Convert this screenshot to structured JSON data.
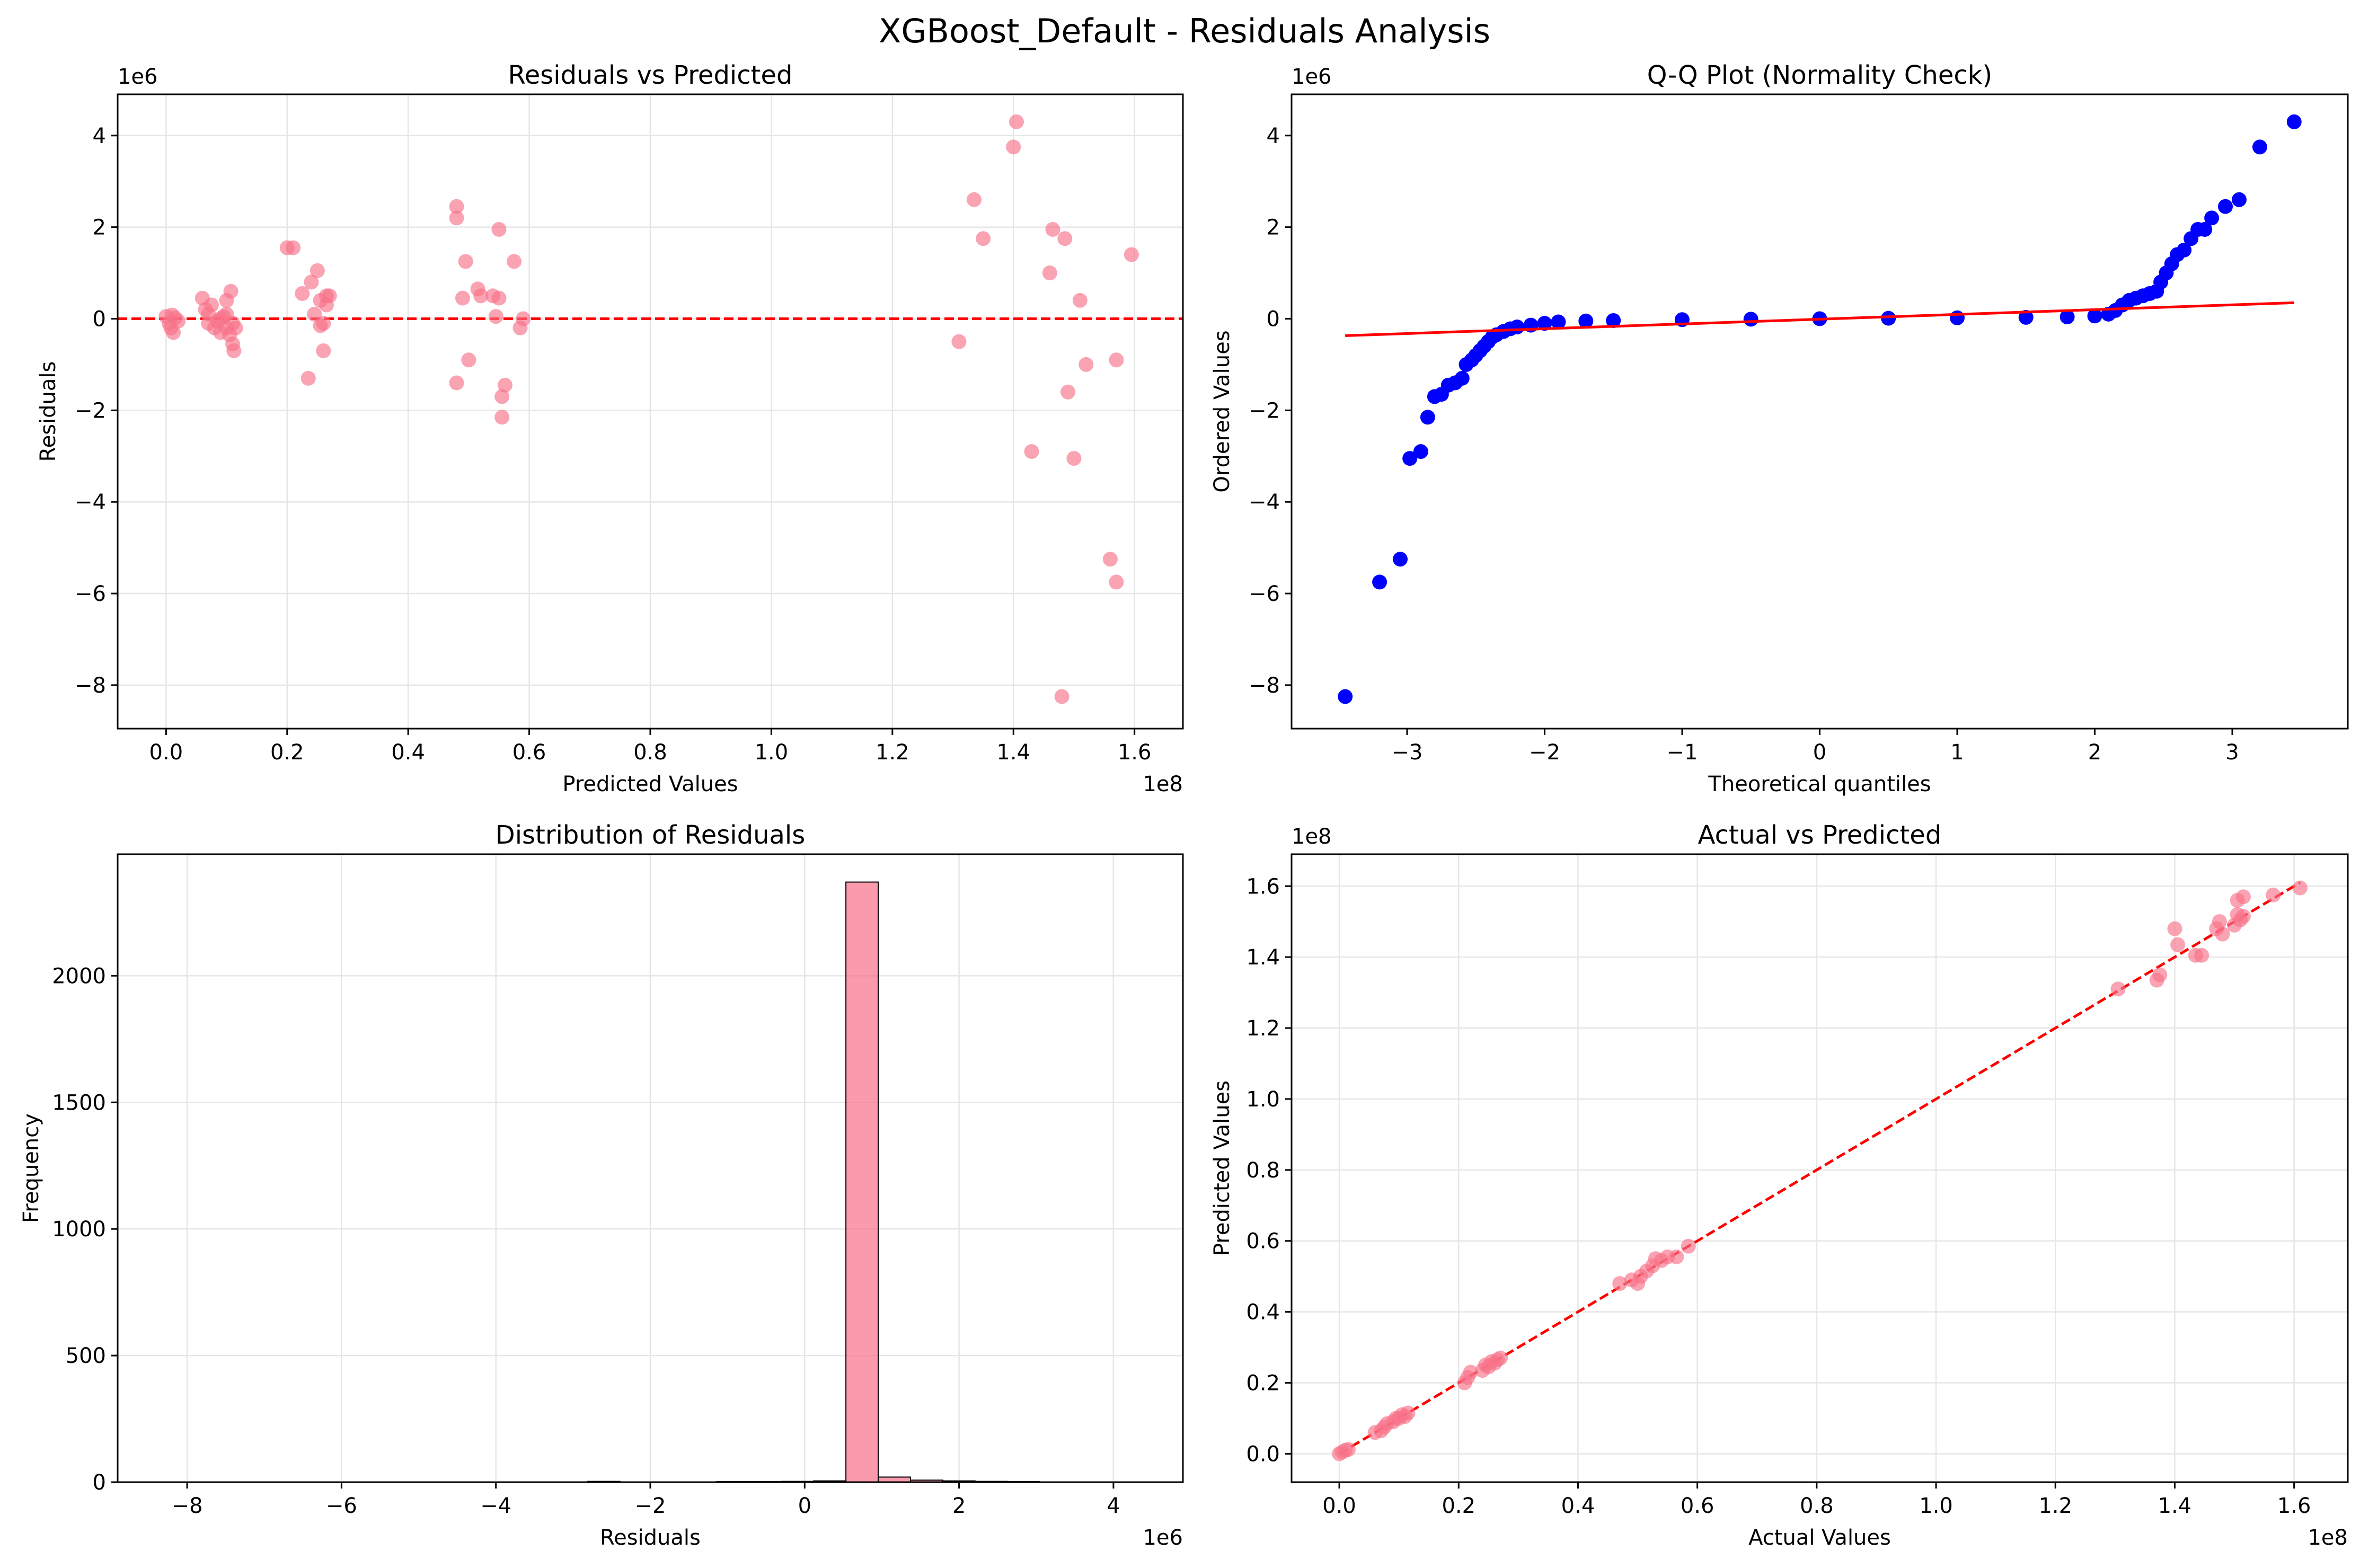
{
  "figure": {
    "suptitle": "XGBoost_Default - Residuals Analysis"
  },
  "colors": {
    "points": "#f77189",
    "refline": "#ff0000",
    "qq_points": "#0000ff",
    "qq_line": "#ff0000",
    "grid": "#e6e6e6"
  },
  "chart_data": [
    {
      "id": "residuals-vs-predicted",
      "type": "scatter",
      "title": "Residuals vs Predicted",
      "xlabel": "Predicted Values",
      "ylabel": "Residuals",
      "x_multiplier": "1e8",
      "y_multiplier": "1e6",
      "xlim": [
        -0.08,
        1.68
      ],
      "ylim": [
        -8.95,
        4.9
      ],
      "xticks": [
        0.0,
        0.2,
        0.4,
        0.6,
        0.8,
        1.0,
        1.2,
        1.4,
        1.6
      ],
      "xtick_labels": [
        "0.0",
        "0.2",
        "0.4",
        "0.6",
        "0.8",
        "1.0",
        "1.2",
        "1.4",
        "1.6"
      ],
      "yticks": [
        -8,
        -6,
        -4,
        -2,
        0,
        2,
        4
      ],
      "ytick_labels": [
        "−8",
        "−6",
        "−4",
        "−2",
        "0",
        "2",
        "4"
      ],
      "grid": true,
      "reference_line": {
        "y": 0,
        "style": "dashed"
      },
      "points": [
        [
          0.0,
          0.05
        ],
        [
          0.005,
          -0.1
        ],
        [
          0.01,
          0.08
        ],
        [
          0.008,
          -0.2
        ],
        [
          0.012,
          -0.3
        ],
        [
          0.015,
          0.02
        ],
        [
          0.02,
          -0.05
        ],
        [
          0.06,
          0.45
        ],
        [
          0.065,
          0.2
        ],
        [
          0.07,
          0.1
        ],
        [
          0.07,
          -0.1
        ],
        [
          0.075,
          0.3
        ],
        [
          0.08,
          -0.2
        ],
        [
          0.085,
          -0.05
        ],
        [
          0.09,
          0.0
        ],
        [
          0.09,
          -0.3
        ],
        [
          0.095,
          0.05
        ],
        [
          0.1,
          0.1
        ],
        [
          0.1,
          -0.2
        ],
        [
          0.1,
          0.4
        ],
        [
          0.105,
          -0.35
        ],
        [
          0.107,
          0.6
        ],
        [
          0.11,
          -0.1
        ],
        [
          0.11,
          -0.55
        ],
        [
          0.112,
          -0.7
        ],
        [
          0.115,
          -0.2
        ],
        [
          0.2,
          1.55
        ],
        [
          0.21,
          1.55
        ],
        [
          0.225,
          0.55
        ],
        [
          0.235,
          -1.3
        ],
        [
          0.24,
          0.8
        ],
        [
          0.245,
          0.1
        ],
        [
          0.25,
          1.05
        ],
        [
          0.255,
          0.4
        ],
        [
          0.255,
          -0.15
        ],
        [
          0.26,
          -0.1
        ],
        [
          0.26,
          -0.7
        ],
        [
          0.265,
          0.3
        ],
        [
          0.265,
          0.5
        ],
        [
          0.27,
          0.5
        ],
        [
          0.48,
          2.45
        ],
        [
          0.48,
          2.2
        ],
        [
          0.48,
          -1.4
        ],
        [
          0.49,
          0.45
        ],
        [
          0.495,
          1.25
        ],
        [
          0.5,
          -0.9
        ],
        [
          0.515,
          0.65
        ],
        [
          0.52,
          0.5
        ],
        [
          0.54,
          0.5
        ],
        [
          0.545,
          0.05
        ],
        [
          0.55,
          0.45
        ],
        [
          0.55,
          1.95
        ],
        [
          0.555,
          -1.7
        ],
        [
          0.555,
          -2.15
        ],
        [
          0.56,
          -1.45
        ],
        [
          0.575,
          1.25
        ],
        [
          0.585,
          -0.2
        ],
        [
          0.59,
          0.0
        ],
        [
          1.31,
          -0.5
        ],
        [
          1.335,
          2.6
        ],
        [
          1.35,
          1.75
        ],
        [
          1.4,
          3.75
        ],
        [
          1.405,
          4.3
        ],
        [
          1.43,
          -2.9
        ],
        [
          1.46,
          1.0
        ],
        [
          1.465,
          1.95
        ],
        [
          1.48,
          -8.25
        ],
        [
          1.485,
          1.75
        ],
        [
          1.49,
          -1.6
        ],
        [
          1.5,
          -3.05
        ],
        [
          1.51,
          0.4
        ],
        [
          1.52,
          -1.0
        ],
        [
          1.56,
          -5.25
        ],
        [
          1.57,
          -5.75
        ],
        [
          1.57,
          -0.9
        ],
        [
          1.595,
          1.4
        ]
      ]
    },
    {
      "id": "qq-plot",
      "type": "scatter",
      "title": "Q-Q Plot (Normality Check)",
      "xlabel": "Theoretical quantiles",
      "ylabel": "Ordered Values",
      "y_multiplier": "1e6",
      "xlim": [
        -3.84,
        3.84
      ],
      "ylim": [
        -8.95,
        4.9
      ],
      "xticks": [
        -3,
        -2,
        -1,
        0,
        1,
        2,
        3
      ],
      "xtick_labels": [
        "−3",
        "−2",
        "−1",
        "0",
        "1",
        "2",
        "3"
      ],
      "yticks": [
        -8,
        -6,
        -4,
        -2,
        0,
        2,
        4
      ],
      "ytick_labels": [
        "−8",
        "−6",
        "−4",
        "−2",
        "0",
        "2",
        "4"
      ],
      "grid": false,
      "fit_line": {
        "x": [
          -3.45,
          3.45
        ],
        "y": [
          -0.37,
          0.35
        ]
      },
      "points": [
        [
          -3.45,
          -8.25
        ],
        [
          -3.2,
          -5.75
        ],
        [
          -3.05,
          -5.25
        ],
        [
          -2.98,
          -3.05
        ],
        [
          -2.9,
          -2.9
        ],
        [
          -2.85,
          -2.15
        ],
        [
          -2.8,
          -1.7
        ],
        [
          -2.75,
          -1.65
        ],
        [
          -2.7,
          -1.45
        ],
        [
          -2.65,
          -1.4
        ],
        [
          -2.6,
          -1.3
        ],
        [
          -2.57,
          -1.0
        ],
        [
          -2.53,
          -0.9
        ],
        [
          -2.5,
          -0.8
        ],
        [
          -2.47,
          -0.7
        ],
        [
          -2.44,
          -0.6
        ],
        [
          -2.41,
          -0.5
        ],
        [
          -2.38,
          -0.4
        ],
        [
          -2.35,
          -0.35
        ],
        [
          -2.3,
          -0.28
        ],
        [
          -2.25,
          -0.22
        ],
        [
          -2.2,
          -0.18
        ],
        [
          -2.1,
          -0.14
        ],
        [
          -2.0,
          -0.1
        ],
        [
          -1.9,
          -0.07
        ],
        [
          -1.7,
          -0.05
        ],
        [
          -1.5,
          -0.04
        ],
        [
          -1.0,
          -0.02
        ],
        [
          -0.5,
          -0.01
        ],
        [
          0.0,
          0.0
        ],
        [
          0.5,
          0.01
        ],
        [
          1.0,
          0.02
        ],
        [
          1.5,
          0.03
        ],
        [
          1.8,
          0.04
        ],
        [
          2.0,
          0.06
        ],
        [
          2.1,
          0.1
        ],
        [
          2.15,
          0.18
        ],
        [
          2.2,
          0.3
        ],
        [
          2.25,
          0.4
        ],
        [
          2.3,
          0.45
        ],
        [
          2.35,
          0.5
        ],
        [
          2.4,
          0.55
        ],
        [
          2.45,
          0.6
        ],
        [
          2.48,
          0.8
        ],
        [
          2.52,
          1.0
        ],
        [
          2.56,
          1.2
        ],
        [
          2.6,
          1.4
        ],
        [
          2.65,
          1.5
        ],
        [
          2.7,
          1.75
        ],
        [
          2.75,
          1.95
        ],
        [
          2.8,
          1.95
        ],
        [
          2.85,
          2.2
        ],
        [
          2.95,
          2.45
        ],
        [
          3.05,
          2.6
        ],
        [
          3.2,
          3.75
        ],
        [
          3.45,
          4.3
        ]
      ]
    },
    {
      "id": "residuals-distribution",
      "type": "bar",
      "title": "Distribution of Residuals",
      "xlabel": "Residuals",
      "ylabel": "Frequency",
      "x_multiplier": "1e6",
      "xlim": [
        -8.9,
        4.9
      ],
      "ylim": [
        0,
        2480
      ],
      "xticks": [
        -8,
        -6,
        -4,
        -2,
        0,
        2,
        4
      ],
      "xtick_labels": [
        "−8",
        "−6",
        "−4",
        "−2",
        "0",
        "2",
        "4"
      ],
      "yticks": [
        0,
        500,
        1000,
        1500,
        2000
      ],
      "ytick_labels": [
        "0",
        "500",
        "1000",
        "1500",
        "2000"
      ],
      "grid": true,
      "bin_edges_start": -8.25,
      "bin_width": 0.4183,
      "counts": [
        1,
        0,
        0,
        0,
        0,
        0,
        1,
        1,
        0,
        0,
        0,
        0,
        1,
        3,
        0,
        1,
        1,
        2,
        2,
        3,
        5,
        2370,
        20,
        8,
        5,
        3,
        2,
        1,
        1,
        1
      ]
    },
    {
      "id": "actual-vs-predicted",
      "type": "scatter",
      "title": "Actual vs Predicted",
      "xlabel": "Actual Values",
      "ylabel": "Predicted Values",
      "x_multiplier": "1e8",
      "y_multiplier": "1e8",
      "xlim": [
        -0.08,
        1.69
      ],
      "ylim": [
        -0.08,
        1.69
      ],
      "xticks": [
        0.0,
        0.2,
        0.4,
        0.6,
        0.8,
        1.0,
        1.2,
        1.4,
        1.6
      ],
      "xtick_labels": [
        "0.0",
        "0.2",
        "0.4",
        "0.6",
        "0.8",
        "1.0",
        "1.2",
        "1.4",
        "1.6"
      ],
      "yticks": [
        0.0,
        0.2,
        0.4,
        0.6,
        0.8,
        1.0,
        1.2,
        1.4,
        1.6
      ],
      "ytick_labels": [
        "0.0",
        "0.2",
        "0.4",
        "0.6",
        "0.8",
        "1.0",
        "1.2",
        "1.4",
        "1.6"
      ],
      "grid": true,
      "reference_line": {
        "x": [
          0,
          1.61
        ],
        "y": [
          0,
          1.61
        ],
        "style": "dashed"
      },
      "points": [
        [
          0.0,
          0.0
        ],
        [
          0.005,
          0.005
        ],
        [
          0.01,
          0.01
        ],
        [
          0.015,
          0.012
        ],
        [
          0.06,
          0.06
        ],
        [
          0.07,
          0.065
        ],
        [
          0.075,
          0.075
        ],
        [
          0.08,
          0.085
        ],
        [
          0.09,
          0.09
        ],
        [
          0.095,
          0.1
        ],
        [
          0.1,
          0.1
        ],
        [
          0.105,
          0.11
        ],
        [
          0.11,
          0.105
        ],
        [
          0.115,
          0.115
        ],
        [
          0.21,
          0.2
        ],
        [
          0.215,
          0.215
        ],
        [
          0.22,
          0.23
        ],
        [
          0.24,
          0.235
        ],
        [
          0.245,
          0.25
        ],
        [
          0.25,
          0.245
        ],
        [
          0.255,
          0.26
        ],
        [
          0.26,
          0.255
        ],
        [
          0.265,
          0.265
        ],
        [
          0.27,
          0.27
        ],
        [
          0.47,
          0.48
        ],
        [
          0.49,
          0.49
        ],
        [
          0.5,
          0.48
        ],
        [
          0.505,
          0.5
        ],
        [
          0.515,
          0.515
        ],
        [
          0.525,
          0.53
        ],
        [
          0.53,
          0.55
        ],
        [
          0.54,
          0.545
        ],
        [
          0.55,
          0.555
        ],
        [
          0.565,
          0.555
        ],
        [
          0.585,
          0.585
        ],
        [
          1.305,
          1.31
        ],
        [
          1.37,
          1.335
        ],
        [
          1.375,
          1.35
        ],
        [
          1.4,
          1.48
        ],
        [
          1.405,
          1.435
        ],
        [
          1.435,
          1.405
        ],
        [
          1.445,
          1.405
        ],
        [
          1.47,
          1.48
        ],
        [
          1.475,
          1.5
        ],
        [
          1.48,
          1.465
        ],
        [
          1.5,
          1.49
        ],
        [
          1.505,
          1.52
        ],
        [
          1.51,
          1.505
        ],
        [
          1.515,
          1.515
        ],
        [
          1.505,
          1.56
        ],
        [
          1.515,
          1.57
        ],
        [
          1.565,
          1.575
        ],
        [
          1.61,
          1.595
        ]
      ]
    }
  ]
}
